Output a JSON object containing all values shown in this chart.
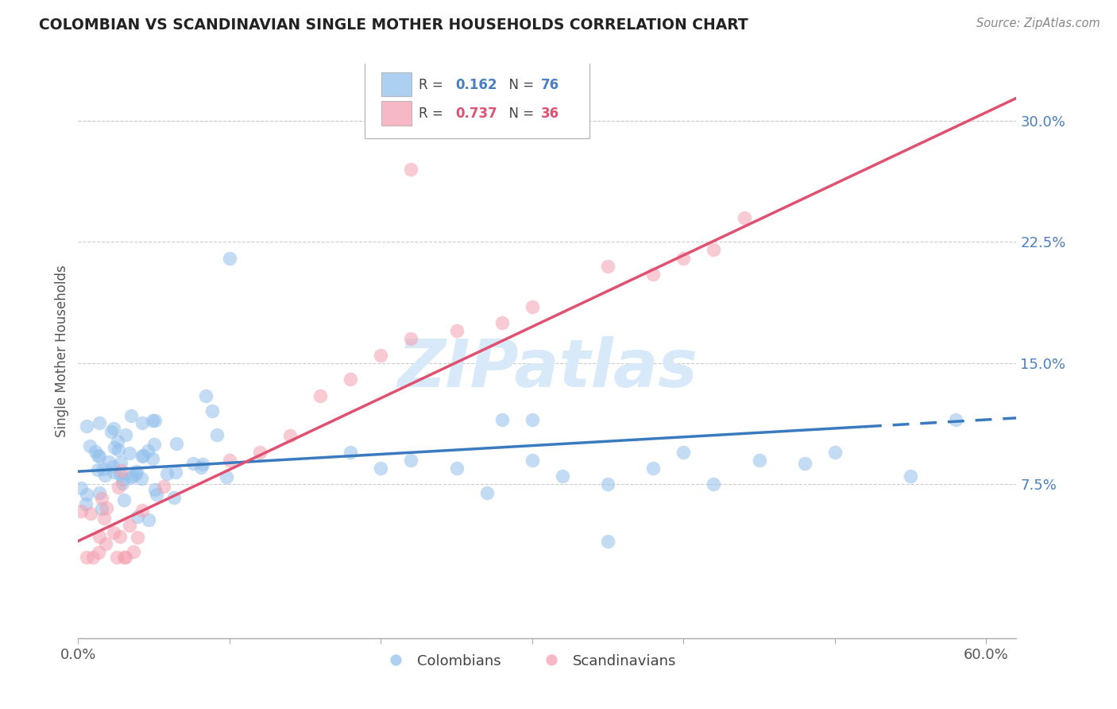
{
  "title": "COLOMBIAN VS SCANDINAVIAN SINGLE MOTHER HOUSEHOLDS CORRELATION CHART",
  "source": "Source: ZipAtlas.com",
  "ylabel": "Single Mother Households",
  "xlim": [
    0.0,
    0.62
  ],
  "ylim": [
    -0.02,
    0.335
  ],
  "yticks": [
    0.075,
    0.15,
    0.225,
    0.3
  ],
  "ytick_labels": [
    "7.5%",
    "15.0%",
    "22.5%",
    "30.0%"
  ],
  "colombian_R": 0.162,
  "colombian_N": 76,
  "scandinavian_R": 0.737,
  "scandinavian_N": 36,
  "blue_color": "#92C0EC",
  "pink_color": "#F4A0B0",
  "blue_line_color": "#3A7ABF",
  "pink_line_color": "#E05070",
  "watermark_color": "#D8EAFA",
  "colombians_label": "Colombians",
  "scandinavians_label": "Scandinavians",
  "blue_line_x0": 0.0,
  "blue_line_y0": 0.083,
  "blue_line_x1": 0.6,
  "blue_line_y1": 0.115,
  "pink_line_x0": 0.0,
  "pink_line_y0": 0.04,
  "pink_line_x1": 0.6,
  "pink_line_y1": 0.305
}
